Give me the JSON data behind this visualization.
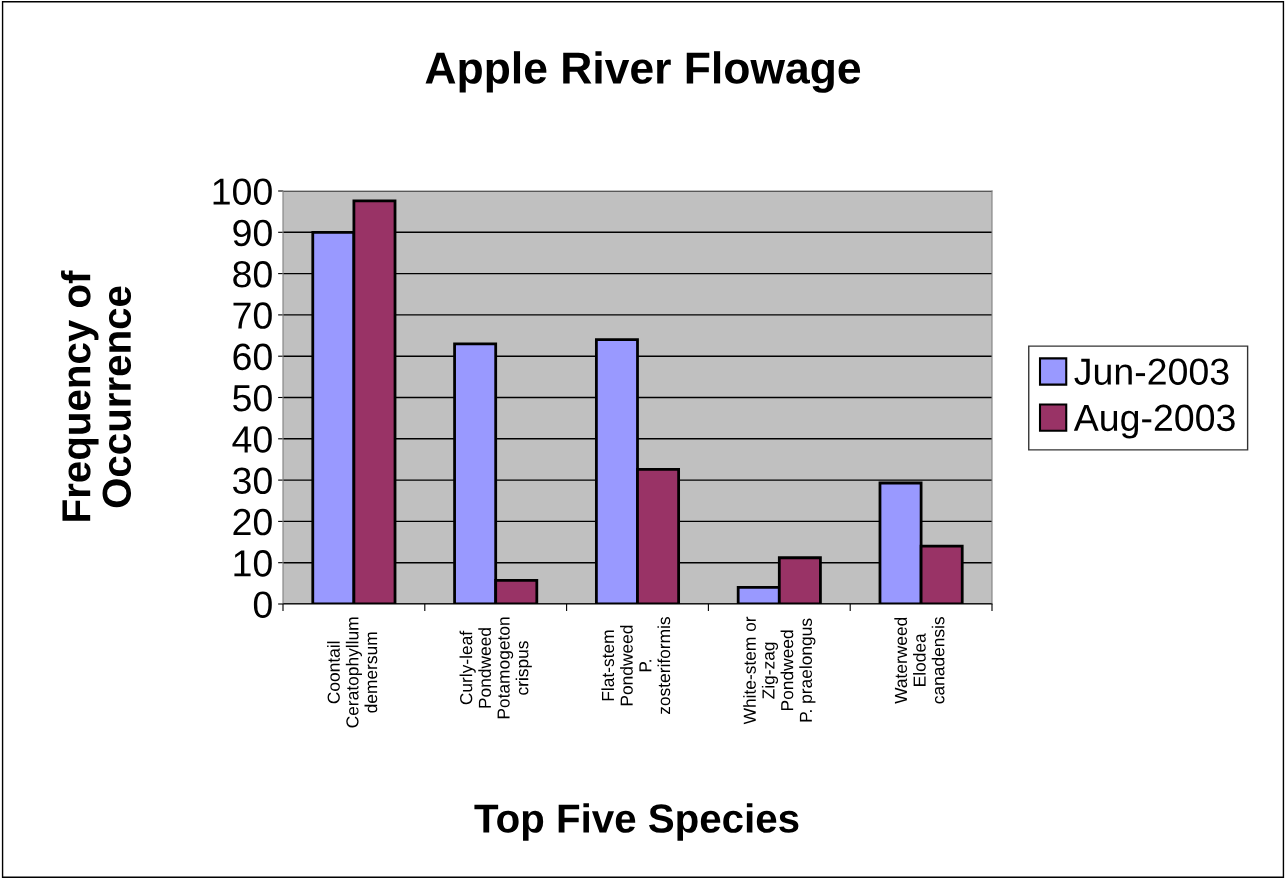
{
  "chart_data": {
    "type": "bar",
    "title": "Apple River Flowage",
    "xlabel": "Top Five Species",
    "ylabel": "Frequency of\nOccurrence",
    "categories": [
      "Coontail\nCeratophyllum\ndemersum",
      "Curly-leaf\nPondweed\nPotamogeton\ncrispus",
      "Flat-stem\nPondweed\nP.\nzosteriformis",
      "White-stem or\nZig-zag\nPondweed\nP. praelongus",
      "Waterweed\nElodea\ncanadensis"
    ],
    "series": [
      {
        "name": "Jun-2003",
        "color": "#9999ff",
        "values": [
          90,
          63,
          64,
          4,
          29.3
        ]
      },
      {
        "name": "Aug-2003",
        "color": "#993366",
        "values": [
          97.6,
          5.7,
          32.6,
          11.2,
          14
        ]
      }
    ],
    "ylim": [
      0,
      100
    ],
    "yticks": [
      0,
      10,
      20,
      30,
      40,
      50,
      60,
      70,
      80,
      90,
      100
    ],
    "grid": "y",
    "legend": "right"
  }
}
